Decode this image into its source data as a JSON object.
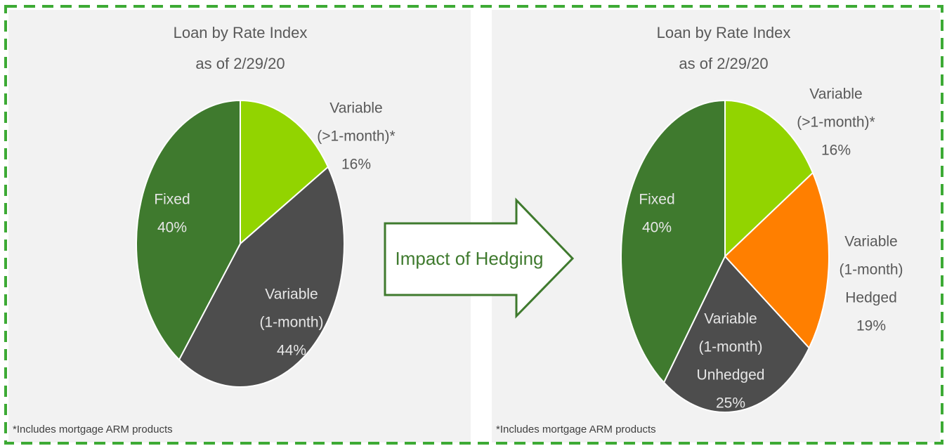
{
  "chart_data": [
    {
      "type": "pie",
      "title": "Loan by Rate Index",
      "subtitle": "as of 2/29/20",
      "categories": [
        [
          "Variable",
          "(>1-month)*"
        ],
        [
          "Variable",
          "(1-month)"
        ],
        [
          "Fixed"
        ]
      ],
      "values": [
        16,
        44,
        40
      ],
      "value_labels": [
        "16%",
        "44%",
        "40%"
      ],
      "colors": [
        "#92d400",
        "#4d4d4d",
        "#3f7a2e"
      ],
      "footnote": "*Includes mortgage ARM products"
    },
    {
      "type": "pie",
      "title": "Loan by Rate Index",
      "subtitle": "as of 2/29/20",
      "categories": [
        [
          "Variable",
          "(>1-month)*"
        ],
        [
          "Variable",
          "(1-month)",
          "Hedged"
        ],
        [
          "Variable",
          "(1-month)",
          "Unhedged"
        ],
        [
          "Fixed"
        ]
      ],
      "values": [
        16,
        19,
        25,
        40
      ],
      "value_labels": [
        "16%",
        "19%",
        "25%",
        "40%"
      ],
      "colors": [
        "#92d400",
        "#ff7f00",
        "#4d4d4d",
        "#3f7a2e"
      ],
      "footnote": "*Includes mortgage ARM products"
    }
  ],
  "arrow_label": "Impact of Hedging"
}
